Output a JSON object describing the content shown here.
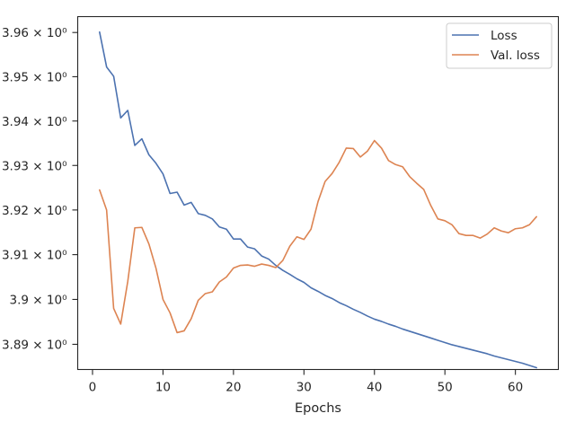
{
  "chart_data": {
    "type": "line",
    "xlabel": "Epochs",
    "ylabel": "",
    "yscale": "log",
    "xlim": [
      -2.1,
      66.1
    ],
    "ylim": [
      3.8844,
      3.9636
    ],
    "grid": false,
    "legend_placement": "top-right",
    "x_ticks": [
      0,
      10,
      20,
      30,
      40,
      50,
      60
    ],
    "x_tick_labels": [
      "0",
      "10",
      "20",
      "30",
      "40",
      "50",
      "60"
    ],
    "y_ticks": [
      3.89,
      3.9,
      3.91,
      3.92,
      3.93,
      3.94,
      3.95,
      3.96
    ],
    "y_tick_labels": [
      "3.89 × 10⁰",
      "3.9 × 10⁰",
      "3.91 × 10⁰",
      "3.92 × 10⁰",
      "3.93 × 10⁰",
      "3.94 × 10⁰",
      "3.95 × 10⁰",
      "3.96 × 10⁰"
    ],
    "series": [
      {
        "name": "Loss",
        "color": "#4c72b0",
        "x": [
          1,
          2,
          3,
          4,
          5,
          6,
          7,
          8,
          9,
          10,
          11,
          12,
          13,
          14,
          15,
          16,
          17,
          18,
          19,
          20,
          21,
          22,
          23,
          24,
          25,
          26,
          27,
          28,
          29,
          30,
          31,
          32,
          33,
          34,
          35,
          36,
          37,
          38,
          39,
          40,
          41,
          42,
          43,
          44,
          45,
          46,
          47,
          48,
          49,
          50,
          51,
          52,
          53,
          54,
          55,
          56,
          57,
          58,
          59,
          60,
          61,
          62,
          63
        ],
        "y": [
          3.9601,
          3.9522,
          3.9501,
          3.9407,
          3.9424,
          3.9345,
          3.936,
          3.9324,
          3.9305,
          3.9281,
          3.9237,
          3.924,
          3.9211,
          3.9217,
          3.9192,
          3.9188,
          3.918,
          3.9162,
          3.9157,
          3.9135,
          3.9135,
          3.9117,
          3.9113,
          3.9097,
          3.909,
          3.9076,
          3.9065,
          3.9056,
          3.9046,
          3.9038,
          3.9026,
          3.9018,
          3.9009,
          3.9002,
          3.8993,
          3.8986,
          3.8978,
          3.8971,
          3.8963,
          3.8956,
          3.8951,
          3.8945,
          3.894,
          3.8934,
          3.8929,
          3.8924,
          3.8919,
          3.8914,
          3.8909,
          3.8904,
          3.8899,
          3.8895,
          3.8891,
          3.8887,
          3.8883,
          3.8879,
          3.8874,
          3.887,
          3.8866,
          3.8862,
          3.8858,
          3.8853,
          3.8848
        ]
      },
      {
        "name": "Val. loss",
        "color": "#dd8452",
        "x": [
          1,
          2,
          3,
          4,
          5,
          6,
          7,
          8,
          9,
          10,
          11,
          12,
          13,
          14,
          15,
          16,
          17,
          18,
          19,
          20,
          21,
          22,
          23,
          24,
          25,
          26,
          27,
          28,
          29,
          30,
          31,
          32,
          33,
          34,
          35,
          36,
          37,
          38,
          39,
          40,
          41,
          42,
          43,
          44,
          45,
          46,
          47,
          48,
          49,
          50,
          51,
          52,
          53,
          54,
          55,
          56,
          57,
          58,
          59,
          60,
          61,
          62,
          63
        ],
        "y": [
          3.9245,
          3.92,
          3.898,
          3.8945,
          3.904,
          3.916,
          3.9161,
          3.9124,
          3.907,
          3.9,
          3.897,
          3.8926,
          3.893,
          3.8957,
          3.8998,
          3.9013,
          3.9017,
          3.9039,
          3.905,
          3.907,
          3.9076,
          3.9077,
          3.9074,
          3.9079,
          3.9076,
          3.9071,
          3.9087,
          3.9119,
          3.914,
          3.9134,
          3.9157,
          3.9219,
          3.9264,
          3.9282,
          3.9307,
          3.9339,
          3.9338,
          3.9319,
          3.9332,
          3.9356,
          3.9339,
          3.9311,
          3.9302,
          3.9297,
          3.9275,
          3.926,
          3.9246,
          3.921,
          3.918,
          3.9176,
          3.9167,
          3.9147,
          3.9143,
          3.9143,
          3.9137,
          3.9146,
          3.916,
          3.9153,
          3.9149,
          3.9158,
          3.916,
          3.9167,
          3.9185
        ]
      }
    ]
  }
}
